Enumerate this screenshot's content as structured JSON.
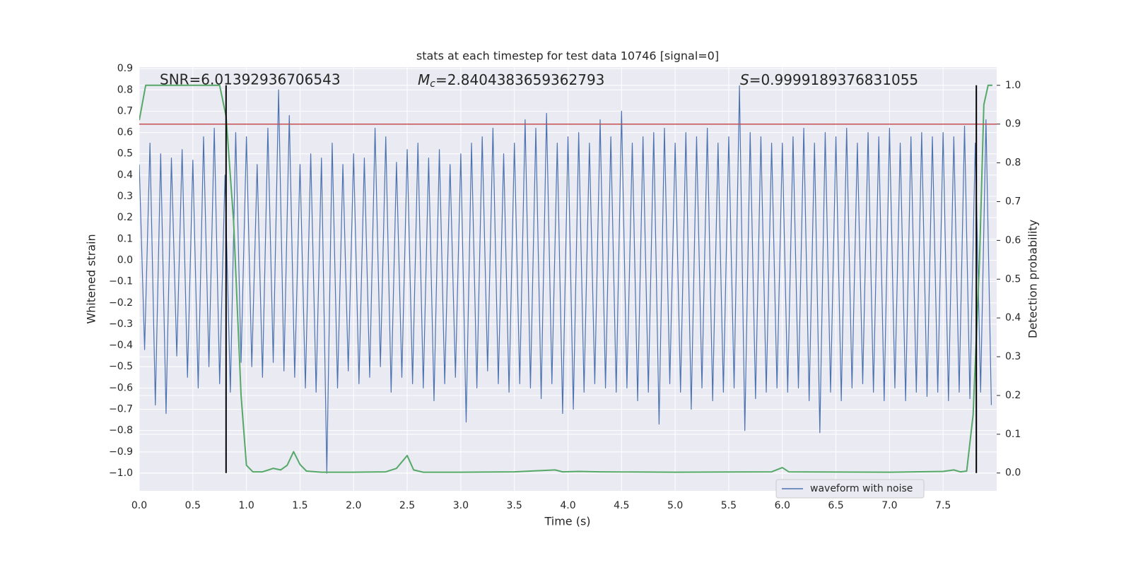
{
  "chart_data": {
    "type": "line",
    "title": "stats at each timestep for test data 10746 [signal=0]",
    "xlabel": "Time (s)",
    "ylabel": "Whitened strain",
    "y2label": "Detection probability",
    "annotations": [
      {
        "text": "SNR=6.01392936706543"
      },
      {
        "symbol": "M",
        "subscript": "c",
        "text": "=2.8404383659362793"
      },
      {
        "symbol": "S",
        "text": "=0.9999189376831055"
      }
    ],
    "xlim": [
      0,
      8.0
    ],
    "ylim": [
      -1.083,
      0.907
    ],
    "y2lim": [
      -0.046,
      1.047
    ],
    "xticks": [
      {
        "value": 0,
        "label": "0.0"
      },
      {
        "value": 0.5,
        "label": "0.5"
      },
      {
        "value": 1,
        "label": "1.0"
      },
      {
        "value": 1.5,
        "label": "1.5"
      },
      {
        "value": 2,
        "label": "2.0"
      },
      {
        "value": 2.5,
        "label": "2.5"
      },
      {
        "value": 3,
        "label": "3.0"
      },
      {
        "value": 3.5,
        "label": "3.5"
      },
      {
        "value": 4,
        "label": "4.0"
      },
      {
        "value": 4.5,
        "label": "4.5"
      },
      {
        "value": 5,
        "label": "5.0"
      },
      {
        "value": 5.5,
        "label": "5.5"
      },
      {
        "value": 6,
        "label": "6.0"
      },
      {
        "value": 6.5,
        "label": "6.5"
      },
      {
        "value": 7,
        "label": "7.0"
      },
      {
        "value": 7.5,
        "label": "7.5"
      }
    ],
    "yticks": [
      {
        "value": -1.0,
        "label": "−1.0"
      },
      {
        "value": -0.9,
        "label": "−0.9"
      },
      {
        "value": -0.8,
        "label": "−0.8"
      },
      {
        "value": -0.7,
        "label": "−0.7"
      },
      {
        "value": -0.6,
        "label": "−0.6"
      },
      {
        "value": -0.5,
        "label": "−0.5"
      },
      {
        "value": -0.4,
        "label": "−0.4"
      },
      {
        "value": -0.3,
        "label": "−0.3"
      },
      {
        "value": -0.2,
        "label": "−0.2"
      },
      {
        "value": -0.1,
        "label": "−0.1"
      },
      {
        "value": 0,
        "label": "0.0"
      },
      {
        "value": 0.1,
        "label": "0.1"
      },
      {
        "value": 0.2,
        "label": "0.2"
      },
      {
        "value": 0.3,
        "label": "0.3"
      },
      {
        "value": 0.4,
        "label": "0.4"
      },
      {
        "value": 0.5,
        "label": "0.5"
      },
      {
        "value": 0.6,
        "label": "0.6"
      },
      {
        "value": 0.7,
        "label": "0.7"
      },
      {
        "value": 0.8,
        "label": "0.8"
      },
      {
        "value": 0.9,
        "label": "0.9"
      }
    ],
    "y2ticks": [
      {
        "value": 0,
        "label": "0.0"
      },
      {
        "value": 0.1,
        "label": "0.1"
      },
      {
        "value": 0.2,
        "label": "0.2"
      },
      {
        "value": 0.3,
        "label": "0.3"
      },
      {
        "value": 0.4,
        "label": "0.4"
      },
      {
        "value": 0.5,
        "label": "0.5"
      },
      {
        "value": 0.6,
        "label": "0.6"
      },
      {
        "value": 0.7,
        "label": "0.7"
      },
      {
        "value": 0.8,
        "label": "0.8"
      },
      {
        "value": 0.9,
        "label": "0.9"
      },
      {
        "value": 1,
        "label": "1.0"
      }
    ],
    "grid": true,
    "legend": "lower right",
    "series": [
      {
        "name": "waveform with noise",
        "color": "#4c72b0",
        "x": [
          0,
          0.05,
          0.1,
          0.15,
          0.2,
          0.25,
          0.3,
          0.35,
          0.4,
          0.45,
          0.5,
          0.55,
          0.6,
          0.65,
          0.7,
          0.75,
          0.8,
          0.85,
          0.9,
          0.95,
          1,
          1.05,
          1.1,
          1.15,
          1.2,
          1.25,
          1.3,
          1.35,
          1.4,
          1.45,
          1.5,
          1.55,
          1.6,
          1.65,
          1.7,
          1.75,
          1.8,
          1.85,
          1.9,
          1.95,
          2,
          2.05,
          2.1,
          2.15,
          2.2,
          2.25,
          2.3,
          2.35,
          2.4,
          2.45,
          2.5,
          2.55,
          2.6,
          2.65,
          2.7,
          2.75,
          2.8,
          2.85,
          2.9,
          2.95,
          3,
          3.05,
          3.1,
          3.15,
          3.2,
          3.25,
          3.3,
          3.35,
          3.4,
          3.45,
          3.5,
          3.55,
          3.6,
          3.65,
          3.7,
          3.75,
          3.8,
          3.85,
          3.9,
          3.95,
          4,
          4.05,
          4.1,
          4.15,
          4.2,
          4.25,
          4.3,
          4.35,
          4.4,
          4.45,
          4.5,
          4.55,
          4.6,
          4.65,
          4.7,
          4.75,
          4.8,
          4.85,
          4.9,
          4.95,
          5,
          5.05,
          5.1,
          5.15,
          5.2,
          5.25,
          5.3,
          5.35,
          5.4,
          5.45,
          5.5,
          5.55,
          5.6,
          5.65,
          5.7,
          5.75,
          5.8,
          5.85,
          5.9,
          5.95,
          6,
          6.05,
          6.1,
          6.15,
          6.2,
          6.25,
          6.3,
          6.35,
          6.4,
          6.45,
          6.5,
          6.55,
          6.6,
          6.65,
          6.7,
          6.75,
          6.8,
          6.85,
          6.9,
          6.95,
          7,
          7.05,
          7.1,
          7.15,
          7.2,
          7.25,
          7.3,
          7.35,
          7.4,
          7.45,
          7.5,
          7.55,
          7.6,
          7.65,
          7.7,
          7.75,
          7.8,
          7.85,
          7.9,
          7.95
        ],
        "values": [
          0.45,
          -0.42,
          0.55,
          -0.68,
          0.5,
          -0.72,
          0.48,
          -0.45,
          0.52,
          -0.55,
          0.47,
          -0.6,
          0.58,
          -0.5,
          0.62,
          -0.58,
          0.4,
          -0.62,
          0.6,
          -0.48,
          0.58,
          -0.5,
          0.45,
          -0.55,
          0.62,
          -0.48,
          0.8,
          -0.52,
          0.68,
          -0.55,
          0.45,
          -0.6,
          0.5,
          -0.62,
          0.48,
          -1.0,
          0.55,
          -0.6,
          0.45,
          -0.52,
          0.5,
          -0.58,
          0.48,
          -0.55,
          0.62,
          -0.5,
          0.58,
          -0.62,
          0.46,
          -0.55,
          0.52,
          -0.58,
          0.55,
          -0.6,
          0.48,
          -0.66,
          0.52,
          -0.58,
          0.45,
          -0.55,
          0.5,
          -0.76,
          0.55,
          -0.6,
          0.58,
          -0.52,
          0.62,
          -0.58,
          0.5,
          -0.62,
          0.55,
          -0.58,
          0.66,
          -0.6,
          0.62,
          -0.65,
          0.69,
          -0.58,
          0.55,
          -0.72,
          0.58,
          -0.7,
          0.6,
          -0.62,
          0.55,
          -0.58,
          0.66,
          -0.6,
          0.58,
          -0.62,
          0.7,
          -0.6,
          0.55,
          -0.66,
          0.58,
          -0.62,
          0.6,
          -0.77,
          0.62,
          -0.58,
          0.55,
          -0.62,
          0.6,
          -0.7,
          0.58,
          -0.6,
          0.62,
          -0.66,
          0.55,
          -0.62,
          0.58,
          -0.6,
          0.82,
          -0.8,
          0.6,
          -0.65,
          0.58,
          -0.62,
          0.55,
          -0.6,
          0.55,
          -0.62,
          0.58,
          -0.6,
          0.62,
          -0.66,
          0.55,
          -0.81,
          0.6,
          -0.62,
          0.58,
          -0.66,
          0.62,
          -0.6,
          0.55,
          -0.58,
          0.6,
          -0.62,
          0.58,
          -0.66,
          0.62,
          -0.6,
          0.55,
          -0.66,
          0.58,
          -0.62,
          0.6,
          -0.64,
          0.58,
          -0.62,
          0.6,
          -0.66,
          0.58,
          -0.62,
          0.63,
          -0.65,
          0.55,
          -0.62,
          0.66,
          -0.68
        ]
      },
      {
        "color": "#55a868",
        "axis": "y2",
        "x": [
          0,
          0.06,
          0.75,
          0.81,
          0.88,
          0.95,
          1.0,
          1.06,
          1.15,
          1.25,
          1.32,
          1.38,
          1.44,
          1.5,
          1.56,
          1.7,
          2.0,
          2.3,
          2.4,
          2.5,
          2.56,
          2.65,
          3.0,
          3.5,
          3.88,
          3.95,
          4.1,
          4.3,
          5.0,
          5.9,
          6.0,
          6.06,
          7.0,
          7.5,
          7.6,
          7.66,
          7.72,
          7.78,
          7.84,
          7.88,
          7.92,
          7.96
        ],
        "values": [
          0.91,
          1.0,
          1.0,
          0.92,
          0.65,
          0.2,
          0.02,
          0.003,
          0.003,
          0.012,
          0.008,
          0.02,
          0.055,
          0.022,
          0.005,
          0.002,
          0.002,
          0.003,
          0.012,
          0.045,
          0.008,
          0.002,
          0.002,
          0.003,
          0.008,
          0.003,
          0.004,
          0.003,
          0.002,
          0.003,
          0.014,
          0.003,
          0.002,
          0.004,
          0.008,
          0.003,
          0.005,
          0.15,
          0.55,
          0.95,
          1.0,
          1.0
        ]
      }
    ],
    "threshold": {
      "value": 0.9,
      "axis": "y2",
      "color": "#c44e52"
    },
    "vlines": {
      "x": [
        0.81,
        7.81
      ],
      "ymin": 0,
      "ymax": 1,
      "axis": "y2",
      "color": "#000000"
    }
  }
}
